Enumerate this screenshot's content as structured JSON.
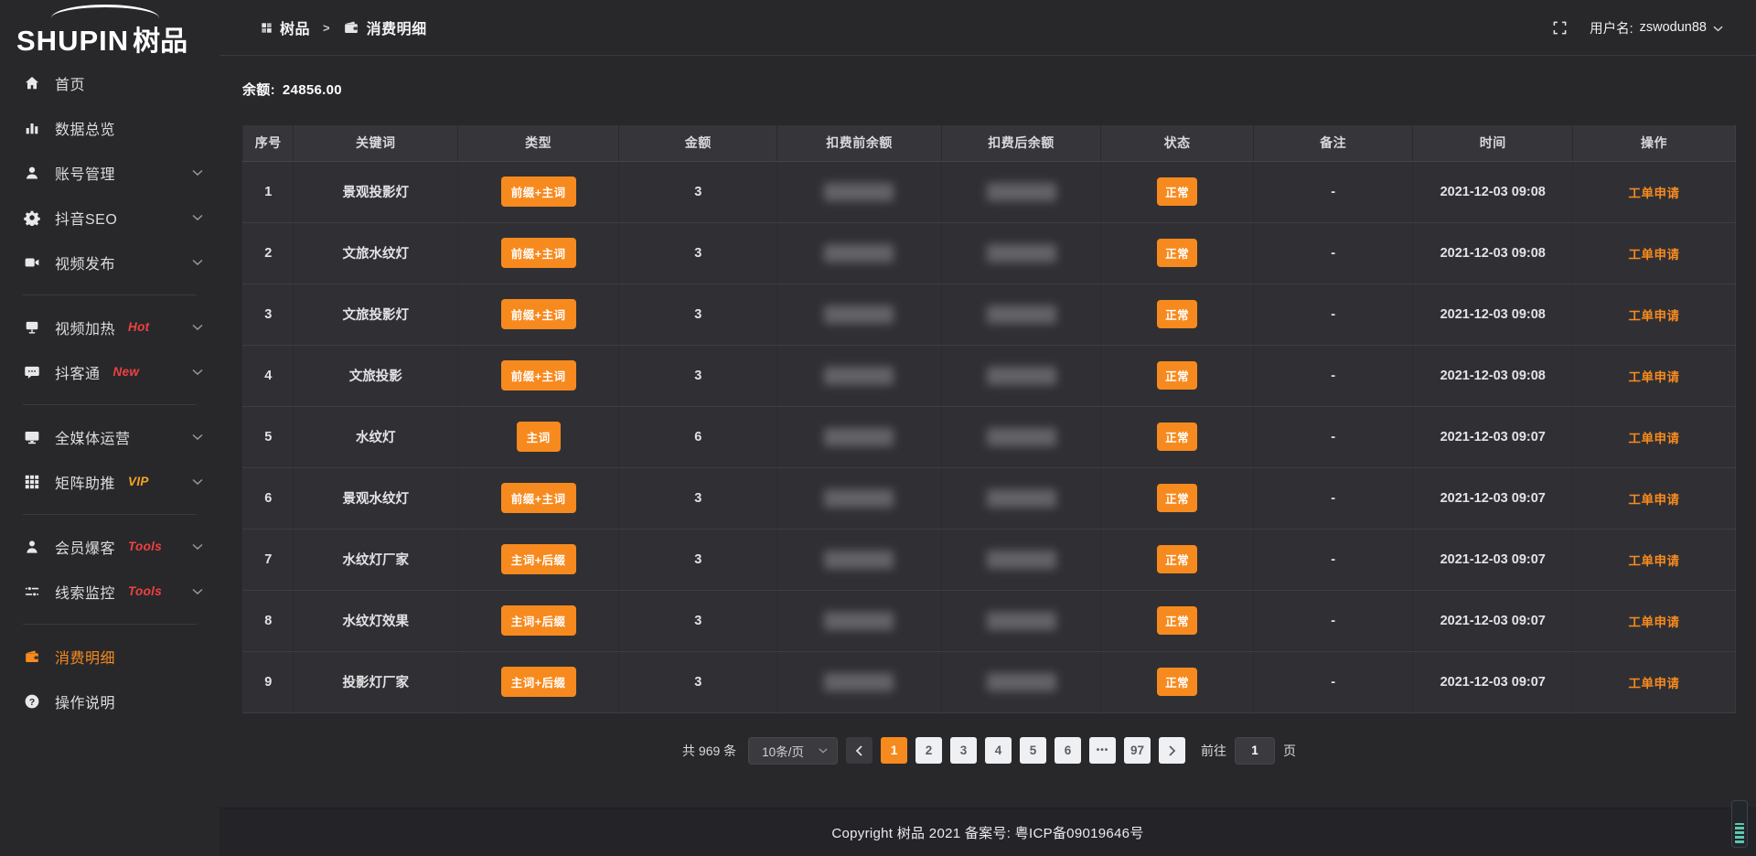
{
  "app": {
    "logo_latin": "SHUPIN",
    "logo_cjk": "树品"
  },
  "header": {
    "breadcrumb": [
      {
        "icon": "dashboard-icon",
        "label": "树品"
      },
      {
        "icon": "wallet-icon",
        "label": "消费明细"
      }
    ],
    "breadcrumb_separator": ">",
    "user_prefix": "用户名:",
    "username": "zswodun88"
  },
  "sidebar": {
    "items": [
      {
        "icon": "home-icon",
        "label": "首页"
      },
      {
        "icon": "bar-chart-icon",
        "label": "数据总览"
      },
      {
        "icon": "user-icon",
        "label": "账号管理",
        "chevron": true
      },
      {
        "icon": "gear-icon",
        "label": "抖音SEO",
        "chevron": true
      },
      {
        "icon": "video-icon",
        "label": "视频发布",
        "chevron": true
      },
      {
        "divider": true
      },
      {
        "icon": "billboard-icon",
        "label": "视频加热",
        "badge": "Hot",
        "badge_style": "red",
        "chevron": true
      },
      {
        "icon": "chat-icon",
        "label": "抖客通",
        "badge": "New",
        "badge_style": "red",
        "chevron": true
      },
      {
        "divider": true
      },
      {
        "icon": "monitor-icon",
        "label": "全媒体运营",
        "chevron": true
      },
      {
        "icon": "grid-icon",
        "label": "矩阵助推",
        "badge": "VIP",
        "badge_style": "gold",
        "chevron": true
      },
      {
        "divider": true
      },
      {
        "icon": "member-icon",
        "label": "会员爆客",
        "badge": "Tools",
        "badge_style": "red",
        "chevron": true
      },
      {
        "icon": "sliders-icon",
        "label": "线索监控",
        "badge": "Tools",
        "badge_style": "red",
        "chevron": true
      },
      {
        "divider": true
      },
      {
        "icon": "wallet-icon",
        "label": "消费明细",
        "active": true
      },
      {
        "icon": "question-icon",
        "label": "操作说明"
      }
    ]
  },
  "balance": {
    "label": "余额:",
    "value": "24856.00"
  },
  "table": {
    "columns": [
      "序号",
      "关键词",
      "类型",
      "金额",
      "扣费前余额",
      "扣费后余额",
      "状态",
      "备注",
      "时间",
      "操作"
    ],
    "redacted_columns": [
      "扣费前余额",
      "扣费后余额"
    ],
    "rows": [
      {
        "no": "1",
        "keyword": "景观投影灯",
        "type": "前缀+主词",
        "amount": "3",
        "status": "正常",
        "remark": "-",
        "time": "2021-12-03 09:08",
        "action": "工单申请"
      },
      {
        "no": "2",
        "keyword": "文旅水纹灯",
        "type": "前缀+主词",
        "amount": "3",
        "status": "正常",
        "remark": "-",
        "time": "2021-12-03 09:08",
        "action": "工单申请"
      },
      {
        "no": "3",
        "keyword": "文旅投影灯",
        "type": "前缀+主词",
        "amount": "3",
        "status": "正常",
        "remark": "-",
        "time": "2021-12-03 09:08",
        "action": "工单申请"
      },
      {
        "no": "4",
        "keyword": "文旅投影",
        "type": "前缀+主词",
        "amount": "3",
        "status": "正常",
        "remark": "-",
        "time": "2021-12-03 09:08",
        "action": "工单申请"
      },
      {
        "no": "5",
        "keyword": "水纹灯",
        "type": "主词",
        "amount": "6",
        "status": "正常",
        "remark": "-",
        "time": "2021-12-03 09:07",
        "action": "工单申请"
      },
      {
        "no": "6",
        "keyword": "景观水纹灯",
        "type": "前缀+主词",
        "amount": "3",
        "status": "正常",
        "remark": "-",
        "time": "2021-12-03 09:07",
        "action": "工单申请"
      },
      {
        "no": "7",
        "keyword": "水纹灯厂家",
        "type": "主词+后缀",
        "amount": "3",
        "status": "正常",
        "remark": "-",
        "time": "2021-12-03 09:07",
        "action": "工单申请"
      },
      {
        "no": "8",
        "keyword": "水纹灯效果",
        "type": "主词+后缀",
        "amount": "3",
        "status": "正常",
        "remark": "-",
        "time": "2021-12-03 09:07",
        "action": "工单申请"
      },
      {
        "no": "9",
        "keyword": "投影灯厂家",
        "type": "主词+后缀",
        "amount": "3",
        "status": "正常",
        "remark": "-",
        "time": "2021-12-03 09:07",
        "action": "工单申请"
      }
    ]
  },
  "pagination": {
    "total": "共 969 条",
    "page_size": "10条/页",
    "pages": [
      "1",
      "2",
      "3",
      "4",
      "5",
      "6",
      "•••",
      "97"
    ],
    "active_page": "1",
    "jump_prefix": "前往",
    "jump_value": "1",
    "jump_suffix": "页"
  },
  "footer": {
    "copyright": "Copyright 树品 2021 备案号: 粤ICP备09019646号"
  },
  "colors": {
    "accent": "#f78a1e",
    "badge_red": "#f0413f",
    "badge_gold": "#f5a623",
    "page_bg": "#28282b",
    "row_bg": "#303034"
  }
}
